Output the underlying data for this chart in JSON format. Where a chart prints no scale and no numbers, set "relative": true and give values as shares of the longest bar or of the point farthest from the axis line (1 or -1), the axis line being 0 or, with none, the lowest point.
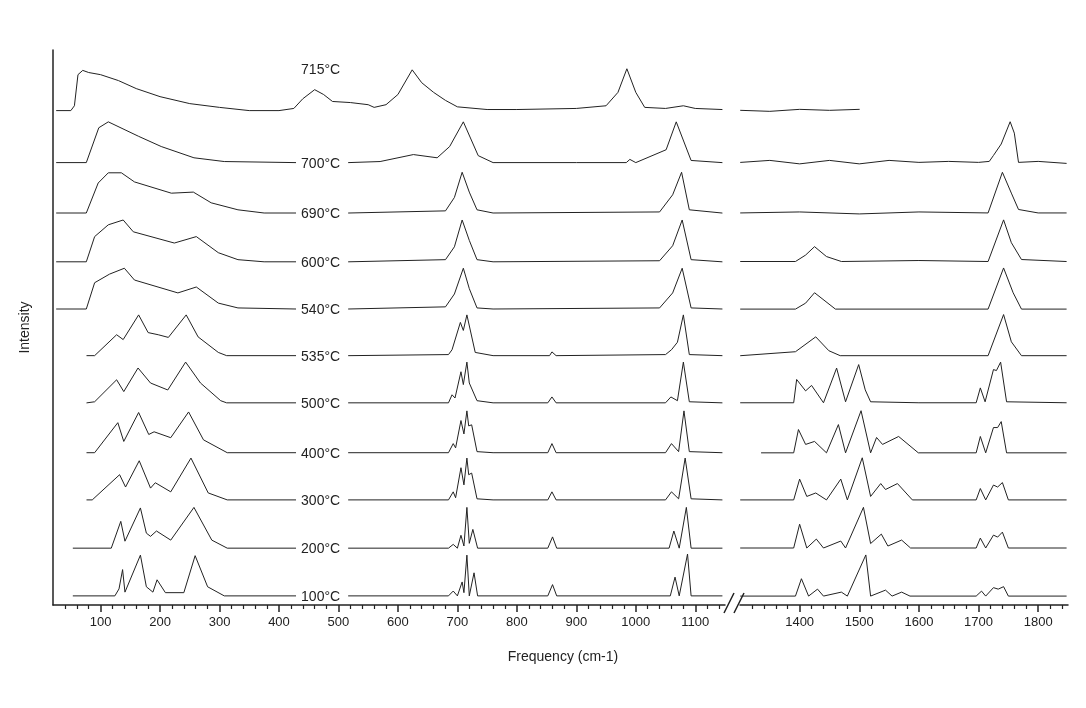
{
  "chart_data": [
    {
      "type": "line",
      "relative": true,
      "xlabel": "Frequency (cm-1)",
      "ylabel": "Intensity",
      "marker": "none",
      "line_style": "solid",
      "xlim": [
        20,
        1150
      ],
      "xticks": [
        {
          "value": 40,
          "label": null
        },
        {
          "value": 60,
          "label": null
        },
        {
          "value": 80,
          "label": null
        },
        100,
        {
          "value": 120,
          "label": null
        },
        {
          "value": 140,
          "label": null
        },
        {
          "value": 160,
          "label": null
        },
        {
          "value": 180,
          "label": null
        },
        200,
        {
          "value": 220,
          "label": null
        },
        {
          "value": 240,
          "label": null
        },
        {
          "value": 260,
          "label": null
        },
        {
          "value": 280,
          "label": null
        },
        300,
        {
          "value": 320,
          "label": null
        },
        {
          "value": 340,
          "label": null
        },
        {
          "value": 360,
          "label": null
        },
        {
          "value": 380,
          "label": null
        },
        400,
        {
          "value": 420,
          "label": null
        },
        {
          "value": 440,
          "label": null
        },
        {
          "value": 460,
          "label": null
        },
        {
          "value": 480,
          "label": null
        },
        500,
        {
          "value": 520,
          "label": null
        },
        {
          "value": 540,
          "label": null
        },
        {
          "value": 560,
          "label": null
        },
        {
          "value": 580,
          "label": null
        },
        600,
        {
          "value": 620,
          "label": null
        },
        {
          "value": 640,
          "label": null
        },
        {
          "value": 660,
          "label": null
        },
        {
          "value": 680,
          "label": null
        },
        700,
        {
          "value": 720,
          "label": null
        },
        {
          "value": 740,
          "label": null
        },
        {
          "value": 760,
          "label": null
        },
        {
          "value": 780,
          "label": null
        },
        800,
        {
          "value": 820,
          "label": null
        },
        {
          "value": 840,
          "label": null
        },
        {
          "value": 860,
          "label": null
        },
        {
          "value": 880,
          "label": null
        },
        900,
        {
          "value": 920,
          "label": null
        },
        {
          "value": 940,
          "label": null
        },
        {
          "value": 960,
          "label": null
        },
        {
          "value": 980,
          "label": null
        },
        1000,
        {
          "value": 1020,
          "label": null
        },
        {
          "value": 1040,
          "label": null
        },
        {
          "value": 1060,
          "label": null
        },
        {
          "value": 1080,
          "label": null
        },
        1100,
        {
          "value": 1120,
          "label": null
        },
        {
          "value": 1140,
          "label": null
        }
      ],
      "series": [
        {
          "name": "715°C",
          "color": "#222222",
          "x": [
            26,
            50,
            56,
            62,
            70,
            80,
            100,
            130,
            160,
            200,
            250,
            300,
            350,
            400,
            425,
            440,
            460,
            475,
            490,
            520,
            550,
            560,
            580,
            600,
            624,
            640,
            660,
            680,
            700,
            750,
            800,
            900,
            950,
            970,
            985,
            1000,
            1015,
            1050,
            1080,
            1100,
            1145
          ],
          "values": [
            0.922,
            0.922,
            0.931,
            0.989,
            0.997,
            0.993,
            0.989,
            0.978,
            0.963,
            0.948,
            0.935,
            0.928,
            0.922,
            0.922,
            0.926,
            0.944,
            0.961,
            0.952,
            0.939,
            0.937,
            0.933,
            0.928,
            0.933,
            0.952,
            0.998,
            0.974,
            0.956,
            0.941,
            0.929,
            0.924,
            0.924,
            0.926,
            0.931,
            0.956,
            1.0,
            0.956,
            0.928,
            0.926,
            0.931,
            0.926,
            0.924
          ]
        },
        {
          "name": "700°C",
          "color": "#222222",
          "x": [
            26,
            76,
            97,
            113,
            164,
            202,
            257,
            308,
            428,
            470,
            517,
            570,
            626,
            666,
            687,
            710,
            735,
            760,
            900,
            984,
            990,
            1000,
            1051,
            1068,
            1093,
            1145
          ],
          "values": [
            0.825,
            0.825,
            0.89,
            0.901,
            0.874,
            0.855,
            0.834,
            0.827,
            0.825,
            null,
            0.825,
            0.827,
            0.84,
            0.834,
            0.855,
            0.901,
            0.838,
            0.825,
            0.825,
            0.825,
            0.831,
            0.825,
            0.849,
            0.901,
            0.829,
            0.825
          ]
        },
        {
          "name": "690°C",
          "color": "#222222",
          "x": [
            26,
            76,
            96,
            113,
            135,
            157,
            219,
            256,
            286,
            331,
            375,
            428,
            470,
            517,
            680,
            695,
            708,
            720,
            733,
            760,
            1040,
            1062,
            1077,
            1090,
            1145
          ],
          "values": [
            0.731,
            0.731,
            0.787,
            0.806,
            0.806,
            0.789,
            0.768,
            0.77,
            0.75,
            0.737,
            0.731,
            0.731,
            null,
            0.731,
            0.735,
            0.76,
            0.807,
            0.77,
            0.737,
            0.731,
            0.733,
            0.765,
            0.807,
            0.737,
            0.731
          ]
        },
        {
          "name": "600°C",
          "color": "#222222",
          "x": [
            26,
            76,
            90,
            113,
            138,
            155,
            224,
            261,
            298,
            331,
            375,
            428,
            470,
            517,
            680,
            695,
            708,
            720,
            733,
            760,
            1040,
            1062,
            1078,
            1093,
            1145
          ],
          "values": [
            0.64,
            0.64,
            0.687,
            0.709,
            0.718,
            0.696,
            0.675,
            0.687,
            0.657,
            0.644,
            0.64,
            0.64,
            null,
            0.64,
            0.644,
            0.668,
            0.718,
            0.68,
            0.644,
            0.64,
            0.642,
            0.67,
            0.718,
            0.644,
            0.64
          ]
        },
        {
          "name": "540°C",
          "color": "#222222",
          "x": [
            26,
            76,
            90,
            115,
            140,
            157,
            230,
            261,
            298,
            331,
            428,
            470,
            517,
            680,
            695,
            710,
            720,
            733,
            760,
            1040,
            1062,
            1078,
            1093,
            1145
          ],
          "values": [
            0.552,
            0.552,
            0.601,
            0.617,
            0.628,
            0.606,
            0.582,
            0.593,
            0.563,
            0.554,
            0.552,
            null,
            0.552,
            0.556,
            0.58,
            0.628,
            0.59,
            0.554,
            0.552,
            0.554,
            0.582,
            0.628,
            0.554,
            0.552
          ]
        },
        {
          "name": "535°C",
          "color": "#222222",
          "x": [
            77,
            90,
            127,
            138,
            164,
            180,
            197,
            214,
            244,
            264,
            298,
            312,
            428,
            470,
            517,
            685,
            691,
            705,
            710,
            716,
            730,
            760,
            855,
            859,
            866,
            1050,
            1060,
            1070,
            1080,
            1090,
            1145
          ],
          "values": [
            0.465,
            0.465,
            0.504,
            0.495,
            0.541,
            0.508,
            0.504,
            0.499,
            0.541,
            0.5,
            0.471,
            0.465,
            0.465,
            null,
            0.465,
            0.467,
            0.476,
            0.527,
            0.512,
            0.541,
            0.471,
            0.465,
            0.465,
            0.472,
            0.465,
            0.467,
            0.476,
            0.49,
            0.541,
            0.467,
            0.465
          ]
        },
        {
          "name": "500°C",
          "color": "#222222",
          "x": [
            77,
            90,
            127,
            139,
            163,
            184,
            213,
            243,
            268,
            302,
            312,
            428,
            470,
            517,
            685,
            691,
            696,
            706,
            710,
            716,
            720,
            733,
            760,
            852,
            859,
            866,
            1050,
            1059,
            1070,
            1080,
            1090,
            1145
          ],
          "values": [
            0.377,
            0.379,
            0.42,
            0.398,
            0.442,
            0.414,
            0.401,
            0.453,
            0.414,
            0.381,
            0.377,
            0.377,
            null,
            0.377,
            0.377,
            0.392,
            0.386,
            0.435,
            0.411,
            0.453,
            0.414,
            0.381,
            0.377,
            0.377,
            0.388,
            0.377,
            0.377,
            0.388,
            0.381,
            0.453,
            0.379,
            0.377
          ]
        },
        {
          "name": "400°C",
          "color": "#222222",
          "x": [
            77,
            90,
            129,
            139,
            164,
            181,
            190,
            218,
            248,
            273,
            313,
            428,
            470,
            517,
            685,
            693,
            697,
            706,
            711,
            716,
            719,
            724,
            733,
            760,
            852,
            859,
            866,
            1050,
            1060,
            1072,
            1081,
            1090,
            1145
          ],
          "values": [
            0.284,
            0.284,
            0.34,
            0.305,
            0.359,
            0.318,
            0.323,
            0.312,
            0.36,
            0.308,
            0.284,
            0.284,
            null,
            0.284,
            0.284,
            0.301,
            0.293,
            0.344,
            0.319,
            0.362,
            0.334,
            0.336,
            0.286,
            0.284,
            0.284,
            0.301,
            0.284,
            0.284,
            0.301,
            0.286,
            0.362,
            0.286,
            0.284
          ]
        },
        {
          "name": "300°C",
          "color": "#222222",
          "x": [
            77,
            86,
            132,
            142,
            165,
            184,
            192,
            218,
            252,
            281,
            313,
            428,
            470,
            517,
            685,
            693,
            697,
            706,
            711,
            716,
            719,
            724,
            733,
            760,
            852,
            859,
            866,
            1050,
            1060,
            1072,
            1083,
            1093,
            1145
          ],
          "values": [
            0.196,
            0.196,
            0.243,
            0.22,
            0.269,
            0.218,
            0.228,
            0.211,
            0.274,
            0.209,
            0.196,
            0.196,
            null,
            0.196,
            0.196,
            0.211,
            0.2,
            0.256,
            0.224,
            0.274,
            0.243,
            0.246,
            0.198,
            0.196,
            0.196,
            0.211,
            0.196,
            0.196,
            0.211,
            0.198,
            0.274,
            0.198,
            0.196
          ]
        },
        {
          "name": "200°C",
          "color": "#222222",
          "x": [
            54,
            118,
            134,
            141,
            167,
            177,
            184,
            194,
            218,
            257,
            287,
            313,
            428,
            470,
            517,
            685,
            693,
            700,
            706,
            711,
            716,
            720,
            726,
            734,
            852,
            860,
            867,
            1056,
            1064,
            1073,
            1085,
            1093,
            1145
          ],
          "values": [
            0.106,
            0.106,
            0.156,
            0.119,
            0.181,
            0.134,
            0.128,
            0.138,
            0.121,
            0.182,
            0.121,
            0.106,
            0.106,
            null,
            0.106,
            0.106,
            0.113,
            0.106,
            0.13,
            0.11,
            0.182,
            0.115,
            0.141,
            0.106,
            0.106,
            0.127,
            0.106,
            0.106,
            0.138,
            0.106,
            0.182,
            0.106,
            0.106
          ]
        },
        {
          "name": "100°C",
          "color": "#222222",
          "x": [
            54,
            124,
            131,
            137,
            141,
            167,
            177,
            188,
            195,
            209,
            240,
            259,
            280,
            308,
            428,
            470,
            517,
            685,
            693,
            700,
            708,
            711,
            716,
            720,
            728,
            734,
            852,
            860,
            867,
            1058,
            1066,
            1073,
            1087,
            1093,
            1145
          ],
          "values": [
            0.017,
            0.017,
            0.03,
            0.066,
            0.024,
            0.093,
            0.034,
            0.024,
            0.047,
            0.023,
            0.023,
            0.092,
            0.034,
            0.017,
            0.017,
            null,
            0.017,
            0.017,
            0.026,
            0.017,
            0.043,
            0.023,
            0.093,
            0.017,
            0.06,
            0.017,
            0.017,
            0.038,
            0.017,
            0.017,
            0.052,
            0.017,
            0.095,
            0.017,
            0.017
          ]
        }
      ]
    },
    {
      "type": "line",
      "relative": true,
      "marker": "none",
      "line_style": "solid",
      "xlim": [
        1300,
        1850
      ],
      "xticks": [
        {
          "value": 1320,
          "label": null
        },
        {
          "value": 1340,
          "label": null
        },
        {
          "value": 1360,
          "label": null
        },
        {
          "value": 1380,
          "label": null
        },
        1400,
        {
          "value": 1420,
          "label": null
        },
        {
          "value": 1440,
          "label": null
        },
        {
          "value": 1460,
          "label": null
        },
        {
          "value": 1480,
          "label": null
        },
        1500,
        {
          "value": 1520,
          "label": null
        },
        {
          "value": 1540,
          "label": null
        },
        {
          "value": 1560,
          "label": null
        },
        {
          "value": 1580,
          "label": null
        },
        1600,
        {
          "value": 1620,
          "label": null
        },
        {
          "value": 1640,
          "label": null
        },
        {
          "value": 1660,
          "label": null
        },
        {
          "value": 1680,
          "label": null
        },
        1700,
        {
          "value": 1720,
          "label": null
        },
        {
          "value": 1740,
          "label": null
        },
        {
          "value": 1760,
          "label": null
        },
        {
          "value": 1780,
          "label": null
        },
        1800,
        {
          "value": 1820,
          "label": null
        },
        {
          "value": 1840,
          "label": null
        }
      ],
      "series": [
        {
          "color": "#222222",
          "x": [
            1301,
            1350,
            1400,
            1450,
            1500
          ],
          "values": [
            0.998,
            0.996,
            1.0,
            0.998,
            1.0
          ]
        },
        {
          "color": "#222222",
          "x": [
            1301,
            1350,
            1400,
            1450,
            1500,
            1550,
            1600,
            1650,
            1700,
            1718,
            1725,
            1738,
            1753,
            1760,
            1767,
            1800,
            1847
          ],
          "values": [
            0.893,
            0.897,
            0.89,
            0.897,
            0.89,
            0.897,
            0.893,
            0.895,
            0.893,
            0.895,
            0.907,
            0.93,
            0.975,
            0.952,
            0.893,
            0.895,
            0.891
          ]
        },
        {
          "color": "#222222",
          "x": [
            1301,
            1400,
            1500,
            1600,
            1716,
            1740,
            1755,
            1767,
            1800,
            1847
          ],
          "values": [
            0.791,
            0.793,
            0.789,
            0.793,
            0.791,
            0.873,
            0.831,
            0.798,
            0.791,
            0.791
          ]
        },
        {
          "color": "#222222",
          "x": [
            1301,
            1393,
            1410,
            1425,
            1445,
            1470,
            1600,
            1716,
            1742,
            1755,
            1772,
            1847
          ],
          "values": [
            0.693,
            0.693,
            0.706,
            0.723,
            0.703,
            0.693,
            0.695,
            0.693,
            0.777,
            0.731,
            0.697,
            0.693
          ]
        },
        {
          "color": "#222222",
          "x": [
            1301,
            1393,
            1410,
            1425,
            1460,
            1716,
            1742,
            1758,
            1772,
            1847
          ],
          "values": [
            0.597,
            0.597,
            0.609,
            0.63,
            0.597,
            0.597,
            0.68,
            0.63,
            0.597,
            0.597
          ]
        },
        {
          "color": "#222222",
          "x": [
            1301,
            1393,
            1427,
            1449,
            1468,
            1716,
            1742,
            1755,
            1772,
            1847
          ],
          "values": [
            0.503,
            0.511,
            0.541,
            0.513,
            0.503,
            0.503,
            0.586,
            0.531,
            0.503,
            0.503
          ]
        },
        {
          "color": "#222222",
          "x": [
            1301,
            1390,
            1395,
            1410,
            1420,
            1440,
            1462,
            1477,
            1499,
            1510,
            1519,
            1600,
            1696,
            1703,
            1711,
            1725,
            1730,
            1737,
            1747,
            1847
          ],
          "values": [
            0.408,
            0.408,
            0.455,
            0.432,
            0.443,
            0.408,
            0.478,
            0.41,
            0.485,
            0.434,
            0.41,
            0.408,
            0.408,
            0.438,
            0.41,
            0.475,
            0.473,
            0.49,
            0.41,
            0.408
          ]
        },
        {
          "color": "#222222",
          "x": [
            1336,
            1390,
            1398,
            1410,
            1425,
            1445,
            1465,
            1477,
            1503,
            1519,
            1529,
            1539,
            1566,
            1599,
            1696,
            1703,
            1712,
            1725,
            1732,
            1738,
            1747,
            1847
          ],
          "values": [
            0.307,
            0.307,
            0.354,
            0.324,
            0.33,
            0.307,
            0.364,
            0.307,
            0.392,
            0.307,
            0.338,
            0.324,
            0.34,
            0.307,
            0.307,
            0.34,
            0.307,
            0.358,
            0.358,
            0.37,
            0.307,
            0.307
          ]
        },
        {
          "color": "#222222",
          "x": [
            1301,
            1390,
            1400,
            1412,
            1427,
            1445,
            1469,
            1480,
            1505,
            1519,
            1536,
            1544,
            1564,
            1589,
            1696,
            1703,
            1712,
            1725,
            1732,
            1740,
            1750,
            1847
          ],
          "values": [
            0.212,
            0.212,
            0.254,
            0.219,
            0.226,
            0.212,
            0.254,
            0.212,
            0.297,
            0.219,
            0.245,
            0.233,
            0.245,
            0.212,
            0.212,
            0.235,
            0.212,
            0.242,
            0.238,
            0.247,
            0.212,
            0.212
          ]
        },
        {
          "color": "#222222",
          "x": [
            1301,
            1390,
            1400,
            1412,
            1428,
            1440,
            1469,
            1477,
            1507,
            1519,
            1537,
            1548,
            1571,
            1586,
            1696,
            1703,
            1712,
            1725,
            1732,
            1740,
            1750,
            1847
          ],
          "values": [
            0.115,
            0.115,
            0.163,
            0.115,
            0.133,
            0.115,
            0.129,
            0.115,
            0.197,
            0.124,
            0.143,
            0.119,
            0.131,
            0.115,
            0.115,
            0.135,
            0.115,
            0.141,
            0.137,
            0.147,
            0.115,
            0.115
          ]
        },
        {
          "color": "#222222",
          "x": [
            1301,
            1393,
            1403,
            1415,
            1430,
            1440,
            1470,
            1480,
            1511,
            1519,
            1544,
            1555,
            1571,
            1585,
            1696,
            1705,
            1712,
            1725,
            1733,
            1742,
            1750,
            1847
          ],
          "values": [
            0.018,
            0.018,
            0.053,
            0.018,
            0.032,
            0.018,
            0.026,
            0.018,
            0.101,
            0.018,
            0.03,
            0.018,
            0.026,
            0.018,
            0.018,
            0.028,
            0.018,
            0.035,
            0.032,
            0.037,
            0.018,
            0.018
          ]
        }
      ]
    }
  ]
}
